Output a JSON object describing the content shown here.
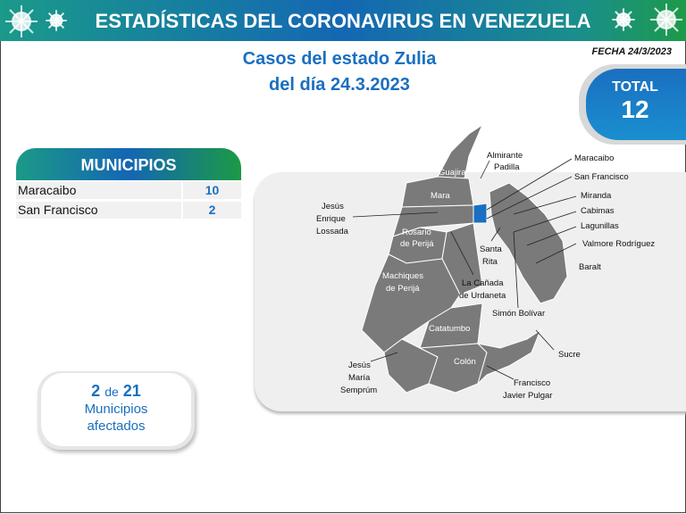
{
  "header": {
    "title": "ESTADÍSTICAS DEL CORONAVIRUS EN VENEZUELA",
    "icon": "virus-icon"
  },
  "subtitle": {
    "line1": "Casos del estado Zulia",
    "line2": "del día 24.3.2023"
  },
  "fecha": "FECHA 24/3/2023",
  "total": {
    "label": "TOTAL",
    "value": "12"
  },
  "municipios": {
    "header": "MUNICIPIOS",
    "rows": [
      {
        "name": "Maracaibo",
        "value": "10"
      },
      {
        "name": "San Francisco",
        "value": "2"
      }
    ]
  },
  "affected": {
    "count": "2",
    "of": "de",
    "total": "21",
    "line1": "Municipios",
    "line2": "afectados"
  },
  "map": {
    "fill": "#7a7a7a",
    "highlight": "#1a6fc0",
    "labels": {
      "guajira": "Guajira",
      "almirante1": "Almirante",
      "almirante2": "Padilla",
      "mara": "Mara",
      "jesus1": "Jesús",
      "jesus2": "Enrique",
      "jesus3": "Lossada",
      "maracaibo": "Maracaibo",
      "sanfrancisco": "San Francisco",
      "miranda": "Miranda",
      "cabimas": "Cabimas",
      "lagunillas": "Lagunillas",
      "valmore": "Valmore Rodríguez",
      "baralt": "Baralt",
      "rosario1": "Rosario",
      "rosario2": "de Perijá",
      "santarita1": "Santa",
      "santarita2": "Rita",
      "canada1": "La Cañada",
      "canada2": "de Urdaneta",
      "machiques1": "Machiques",
      "machiques2": "de Perijá",
      "simon": "Simón Bolívar",
      "catatumbo": "Catatumbo",
      "sucre": "Sucre",
      "semprum1": "Jesús",
      "semprum2": "María",
      "semprum3": "Semprúm",
      "colon": "Colón",
      "fjp1": "Francisco",
      "fjp2": "Javier Pulgar"
    }
  }
}
